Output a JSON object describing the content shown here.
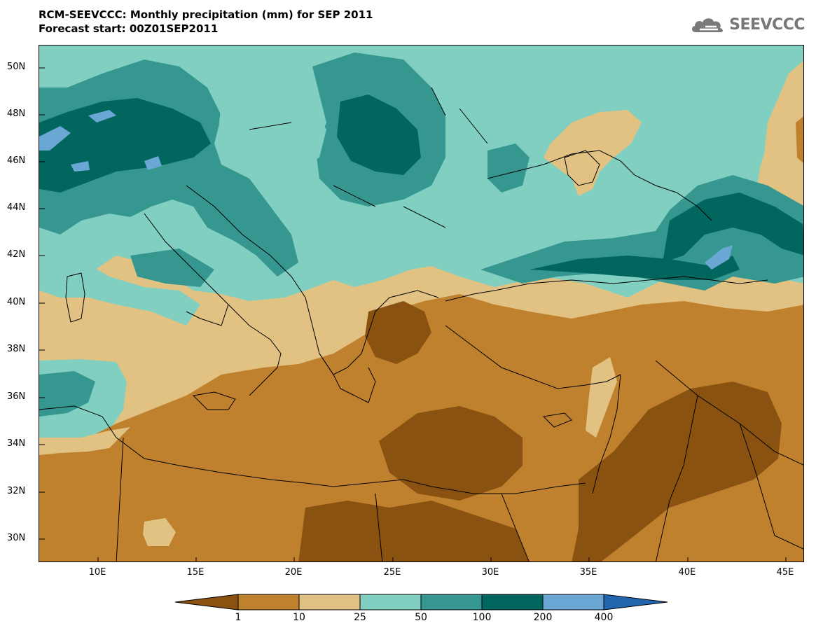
{
  "header": {
    "title": "RCM-SEEVCCC: Monthly precipitation (mm) for SEP 2011",
    "subtitle": "Forecast start: 00Z01SEP2011"
  },
  "logo": {
    "text": "SEEVCCC",
    "icon": "cloud-logo-icon"
  },
  "axes": {
    "y_labels": [
      "50N",
      "48N",
      "46N",
      "44N",
      "42N",
      "40N",
      "38N",
      "36N",
      "34N",
      "32N",
      "30N"
    ],
    "x_labels": [
      "10E",
      "15E",
      "20E",
      "25E",
      "30E",
      "35E",
      "40E",
      "45E"
    ]
  },
  "legend": {
    "thresholds": [
      "1",
      "10",
      "25",
      "50",
      "100",
      "200",
      "400"
    ],
    "colors": [
      "#8a5210",
      "#c0812e",
      "#e2c282",
      "#80cfc0",
      "#35978f",
      "#01665e",
      "#6ba7d4",
      "#2166ac"
    ]
  },
  "map": {
    "region": "Eastern Mediterranean & Black Sea",
    "lon_range": [
      7,
      46
    ],
    "lat_range": [
      29,
      51
    ],
    "palette": {
      "lt1": "#8a5210",
      "p1_10": "#c0812e",
      "p10_25": "#e2c282",
      "p25_50": "#80cfc0",
      "p50_100": "#35978f",
      "p100_200": "#01665e",
      "p200_400": "#6ba7d4",
      "gt400": "#2166ac"
    }
  }
}
